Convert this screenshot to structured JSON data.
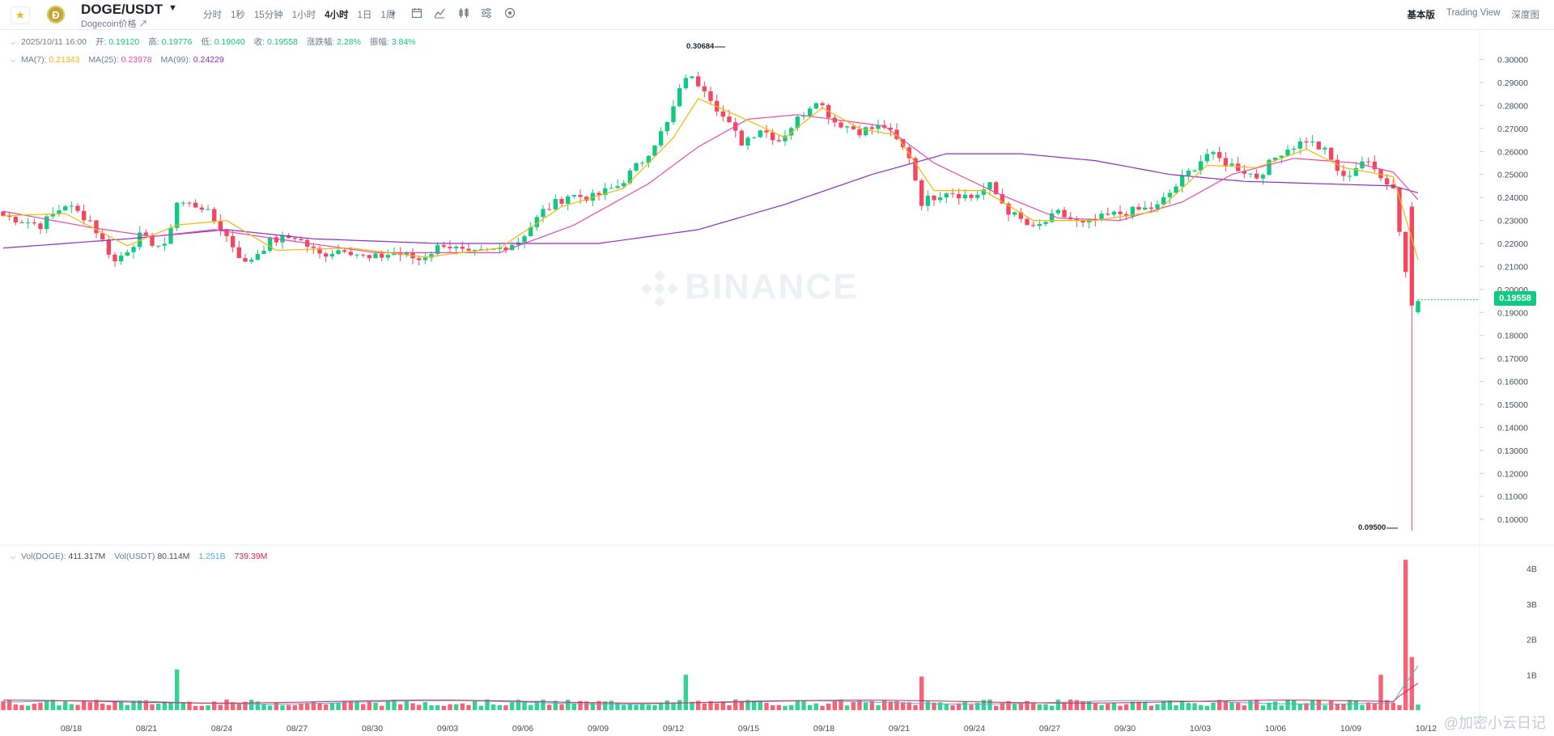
{
  "header": {
    "favorite_icon": "star-icon",
    "coin_logo_letter": "Ð",
    "pair": "DOGE/USDT",
    "coin_subtitle": "Dogecoin价格 ↗"
  },
  "intervals": [
    {
      "label": "分时",
      "active": false
    },
    {
      "label": "1秒",
      "active": false
    },
    {
      "label": "15分钟",
      "active": false
    },
    {
      "label": "1小时",
      "active": false
    },
    {
      "label": "4小时",
      "active": true
    },
    {
      "label": "1日",
      "active": false
    },
    {
      "label": "1周",
      "active": false
    }
  ],
  "toolbar_icons": [
    "chevron-down-icon",
    "calendar-icon",
    "indicator-icon",
    "candle-type-icon",
    "settings-icon",
    "target-icon"
  ],
  "view_tabs": [
    {
      "label": "基本版",
      "active": true
    },
    {
      "label": "Trading View",
      "active": false
    },
    {
      "label": "深度图",
      "active": false
    }
  ],
  "ohlc": {
    "date": "2025/10/11 16:00",
    "open_label": "开:",
    "open": "0.19120",
    "high_label": "高:",
    "high": "0.19776",
    "low_label": "低:",
    "low": "0.19040",
    "close_label": "收:",
    "close": "0.19558",
    "change_label": "涨跌幅:",
    "change": "2.28%",
    "amp_label": "振幅:",
    "amp": "3.84%"
  },
  "ma": {
    "ma7_label": "MA(7):",
    "ma7": "0.21343",
    "ma25_label": "MA(25):",
    "ma25": "0.23978",
    "ma99_label": "MA(99):",
    "ma99": "0.24229"
  },
  "volume": {
    "doge_label": "Vol(DOGE):",
    "doge": "411.317M",
    "usdt_label": "Vol(USDT)",
    "usdt": "80.114M",
    "ma1": "1.251B",
    "ma2": "739.39M"
  },
  "watermark": "BINANCE",
  "current_price": "0.19558",
  "high_marker": "0.30684",
  "low_marker": "0.09500",
  "colors": {
    "up": "#0ecb81",
    "down": "#f6465d",
    "ma7": "#f0b90b",
    "ma25": "#e84ba9",
    "ma99": "#8c2ec4",
    "vol_ma1": "#4fb0d8",
    "vol_ma2": "#d8254f"
  },
  "brand_mark": "@加密小云日记",
  "chart_data": {
    "type": "candlestick",
    "title": "DOGE/USDT 4小时",
    "x_ticks": [
      "08/18",
      "08/21",
      "08/24",
      "08/27",
      "08/30",
      "09/03",
      "09/06",
      "09/09",
      "09/12",
      "09/15",
      "09/18",
      "09/21",
      "09/24",
      "09/27",
      "09/30",
      "10/03",
      "10/06",
      "10/09",
      "10/12"
    ],
    "price_ticks": [
      "0.30000",
      "0.29000",
      "0.28000",
      "0.27000",
      "0.26000",
      "0.25000",
      "0.24000",
      "0.23000",
      "0.22000",
      "0.21000",
      "0.20000",
      "0.19000",
      "0.18000",
      "0.17000",
      "0.16000",
      "0.15000",
      "0.14000",
      "0.13000",
      "0.12000",
      "0.11000",
      "0.10000"
    ],
    "ylim": [
      0.0895,
      0.3125
    ],
    "volume_ticks": [
      "4B",
      "3B",
      "2B",
      "1B"
    ],
    "volume_ylim": [
      0,
      4.3
    ],
    "price_path": [
      [
        0,
        0.232
      ],
      [
        6,
        0.228
      ],
      [
        10,
        0.237
      ],
      [
        14,
        0.23
      ],
      [
        18,
        0.212
      ],
      [
        22,
        0.223
      ],
      [
        26,
        0.218
      ],
      [
        28,
        0.238
      ],
      [
        32,
        0.236
      ],
      [
        35,
        0.227
      ],
      [
        39,
        0.211
      ],
      [
        43,
        0.221
      ],
      [
        47,
        0.223
      ],
      [
        51,
        0.215
      ],
      [
        55,
        0.218
      ],
      [
        59,
        0.213
      ],
      [
        63,
        0.216
      ],
      [
        67,
        0.213
      ],
      [
        71,
        0.22
      ],
      [
        75,
        0.215
      ],
      [
        79,
        0.217
      ],
      [
        83,
        0.221
      ],
      [
        87,
        0.234
      ],
      [
        91,
        0.241
      ],
      [
        95,
        0.24
      ],
      [
        99,
        0.245
      ],
      [
        103,
        0.256
      ],
      [
        107,
        0.272
      ],
      [
        110,
        0.293
      ],
      [
        113,
        0.288
      ],
      [
        116,
        0.275
      ],
      [
        119,
        0.264
      ],
      [
        122,
        0.27
      ],
      [
        125,
        0.265
      ],
      [
        128,
        0.274
      ],
      [
        131,
        0.283
      ],
      [
        134,
        0.273
      ],
      [
        138,
        0.269
      ],
      [
        142,
        0.271
      ],
      [
        146,
        0.258
      ],
      [
        148,
        0.238
      ],
      [
        152,
        0.243
      ],
      [
        156,
        0.24
      ],
      [
        159,
        0.245
      ],
      [
        162,
        0.234
      ],
      [
        166,
        0.226
      ],
      [
        170,
        0.233
      ],
      [
        174,
        0.228
      ],
      [
        178,
        0.232
      ],
      [
        182,
        0.234
      ],
      [
        186,
        0.236
      ],
      [
        190,
        0.248
      ],
      [
        194,
        0.259
      ],
      [
        198,
        0.254
      ],
      [
        202,
        0.249
      ],
      [
        206,
        0.26
      ],
      [
        210,
        0.265
      ],
      [
        213,
        0.26
      ],
      [
        216,
        0.248
      ],
      [
        219,
        0.256
      ],
      [
        222,
        0.25
      ],
      [
        224,
        0.244
      ],
      [
        227,
        0.19
      ],
      [
        228,
        0.1956
      ]
    ],
    "ma7_path": [
      [
        0,
        0.232
      ],
      [
        10,
        0.233
      ],
      [
        20,
        0.219
      ],
      [
        28,
        0.228
      ],
      [
        36,
        0.23
      ],
      [
        44,
        0.217
      ],
      [
        56,
        0.218
      ],
      [
        68,
        0.214
      ],
      [
        80,
        0.218
      ],
      [
        90,
        0.236
      ],
      [
        100,
        0.244
      ],
      [
        108,
        0.266
      ],
      [
        112,
        0.283
      ],
      [
        118,
        0.276
      ],
      [
        126,
        0.266
      ],
      [
        132,
        0.279
      ],
      [
        138,
        0.27
      ],
      [
        144,
        0.267
      ],
      [
        150,
        0.243
      ],
      [
        158,
        0.243
      ],
      [
        166,
        0.23
      ],
      [
        176,
        0.23
      ],
      [
        186,
        0.234
      ],
      [
        194,
        0.254
      ],
      [
        202,
        0.253
      ],
      [
        210,
        0.261
      ],
      [
        216,
        0.253
      ],
      [
        224,
        0.249
      ],
      [
        228,
        0.213
      ]
    ],
    "ma25_path": [
      [
        0,
        0.234
      ],
      [
        14,
        0.227
      ],
      [
        24,
        0.223
      ],
      [
        34,
        0.226
      ],
      [
        44,
        0.222
      ],
      [
        60,
        0.216
      ],
      [
        80,
        0.216
      ],
      [
        92,
        0.228
      ],
      [
        104,
        0.246
      ],
      [
        112,
        0.262
      ],
      [
        120,
        0.274
      ],
      [
        128,
        0.276
      ],
      [
        142,
        0.271
      ],
      [
        150,
        0.255
      ],
      [
        160,
        0.242
      ],
      [
        170,
        0.231
      ],
      [
        180,
        0.23
      ],
      [
        190,
        0.238
      ],
      [
        198,
        0.25
      ],
      [
        208,
        0.257
      ],
      [
        218,
        0.255
      ],
      [
        224,
        0.251
      ],
      [
        228,
        0.239
      ]
    ],
    "ma99_path": [
      [
        0,
        0.218
      ],
      [
        20,
        0.222
      ],
      [
        36,
        0.226
      ],
      [
        50,
        0.222
      ],
      [
        70,
        0.22
      ],
      [
        96,
        0.22
      ],
      [
        112,
        0.226
      ],
      [
        126,
        0.237
      ],
      [
        140,
        0.25
      ],
      [
        152,
        0.259
      ],
      [
        164,
        0.259
      ],
      [
        176,
        0.256
      ],
      [
        188,
        0.25
      ],
      [
        200,
        0.247
      ],
      [
        212,
        0.246
      ],
      [
        224,
        0.245
      ],
      [
        228,
        0.242
      ]
    ],
    "volume_spikes": [
      [
        28,
        1.15
      ],
      [
        110,
        1.0
      ],
      [
        148,
        0.95
      ],
      [
        222,
        1.0
      ],
      [
        226,
        4.25
      ],
      [
        227,
        1.5
      ]
    ],
    "crash_candle": {
      "open": 0.236,
      "high": 0.238,
      "low": 0.095,
      "close": 0.193
    }
  }
}
